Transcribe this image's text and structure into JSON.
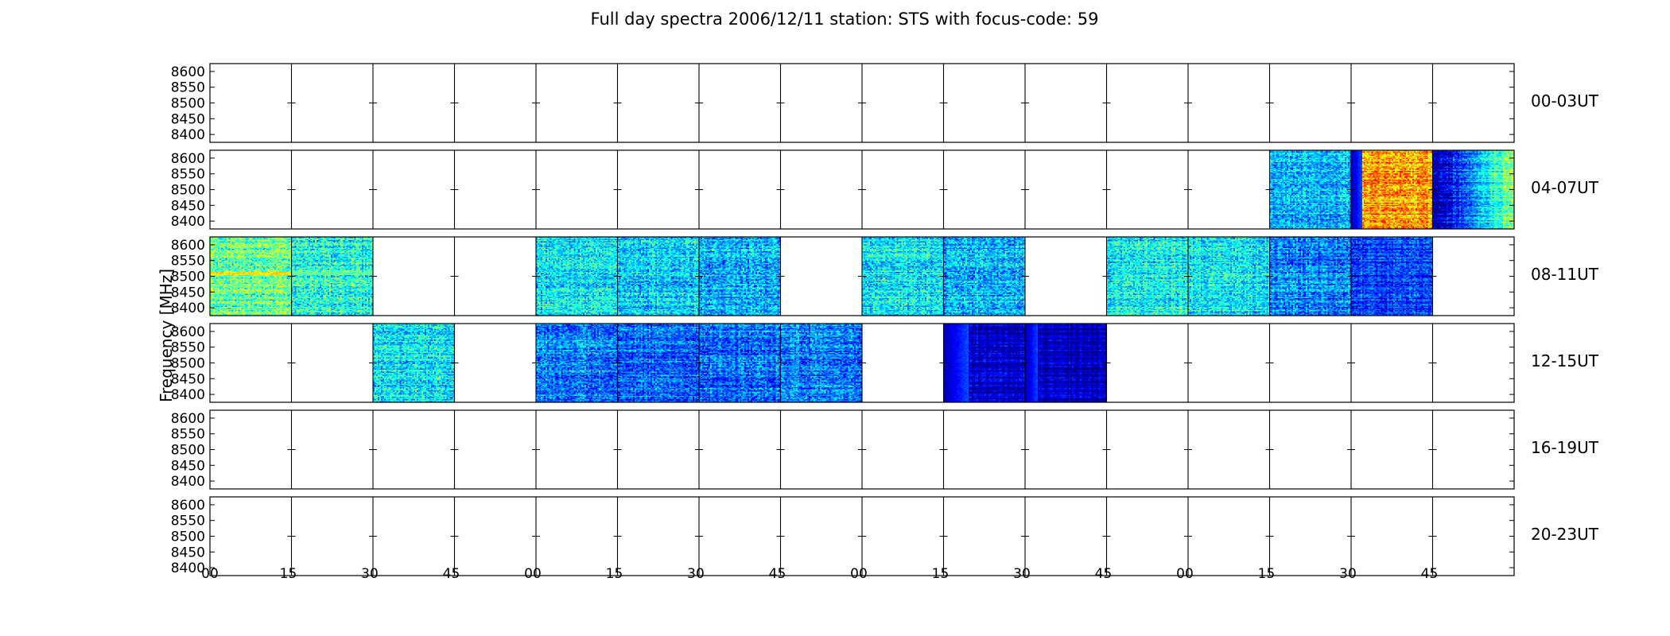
{
  "chart_data": {
    "type": "heatmap",
    "title": "Full day spectra 2006/12/11 station: STS with focus-code: 59",
    "ylabel": "Frequency [MHz]",
    "y_ticks": [
      8600,
      8550,
      8500,
      8450,
      8400
    ],
    "ylim": [
      8375,
      8625
    ],
    "x_ticks": [
      "00",
      "15",
      "30",
      "45",
      "00",
      "15",
      "30",
      "45",
      "00",
      "15",
      "30",
      "45",
      "00",
      "15",
      "30",
      "45"
    ],
    "colormap": "jet",
    "colors": {
      "low": "#00007f",
      "mid": "#7fff7f",
      "high": "#ff0000"
    },
    "rows": [
      {
        "label": "00-03UT",
        "segments": []
      },
      {
        "label": "04-07UT",
        "segments": [
          {
            "slot": 13,
            "mean": 0.3,
            "var": 0.12,
            "front": 0.0
          },
          {
            "slot": 14,
            "mean": 0.72,
            "var": 0.12,
            "front": 0.12
          },
          {
            "slot": 15,
            "mean": 0.28,
            "var": 0.1,
            "grad": 0.25
          }
        ]
      },
      {
        "label": "08-11UT",
        "segments": [
          {
            "slot": 0,
            "mean": 0.48,
            "var": 0.14,
            "line": 0.65
          },
          {
            "slot": 1,
            "mean": 0.4,
            "var": 0.14,
            "line": 0.45
          },
          {
            "slot": 4,
            "mean": 0.36,
            "var": 0.13
          },
          {
            "slot": 5,
            "mean": 0.34,
            "var": 0.13
          },
          {
            "slot": 6,
            "mean": 0.3,
            "var": 0.13
          },
          {
            "slot": 8,
            "mean": 0.36,
            "var": 0.13
          },
          {
            "slot": 9,
            "mean": 0.3,
            "var": 0.13
          },
          {
            "slot": 11,
            "mean": 0.38,
            "var": 0.13
          },
          {
            "slot": 12,
            "mean": 0.36,
            "var": 0.13
          },
          {
            "slot": 13,
            "mean": 0.26,
            "var": 0.12
          },
          {
            "slot": 14,
            "mean": 0.18,
            "var": 0.1
          }
        ]
      },
      {
        "label": "12-15UT",
        "segments": [
          {
            "slot": 2,
            "mean": 0.36,
            "var": 0.13
          },
          {
            "slot": 4,
            "mean": 0.26,
            "var": 0.12
          },
          {
            "slot": 5,
            "mean": 0.22,
            "var": 0.11
          },
          {
            "slot": 6,
            "mean": 0.24,
            "var": 0.12
          },
          {
            "slot": 7,
            "mean": 0.24,
            "var": 0.12
          },
          {
            "slot": 9,
            "mean": 0.08,
            "var": 0.06,
            "front": 0.3
          },
          {
            "slot": 10,
            "mean": 0.06,
            "var": 0.05,
            "front": 0.15
          }
        ]
      },
      {
        "label": "16-19UT",
        "segments": []
      },
      {
        "label": "20-23UT",
        "segments": []
      }
    ]
  }
}
